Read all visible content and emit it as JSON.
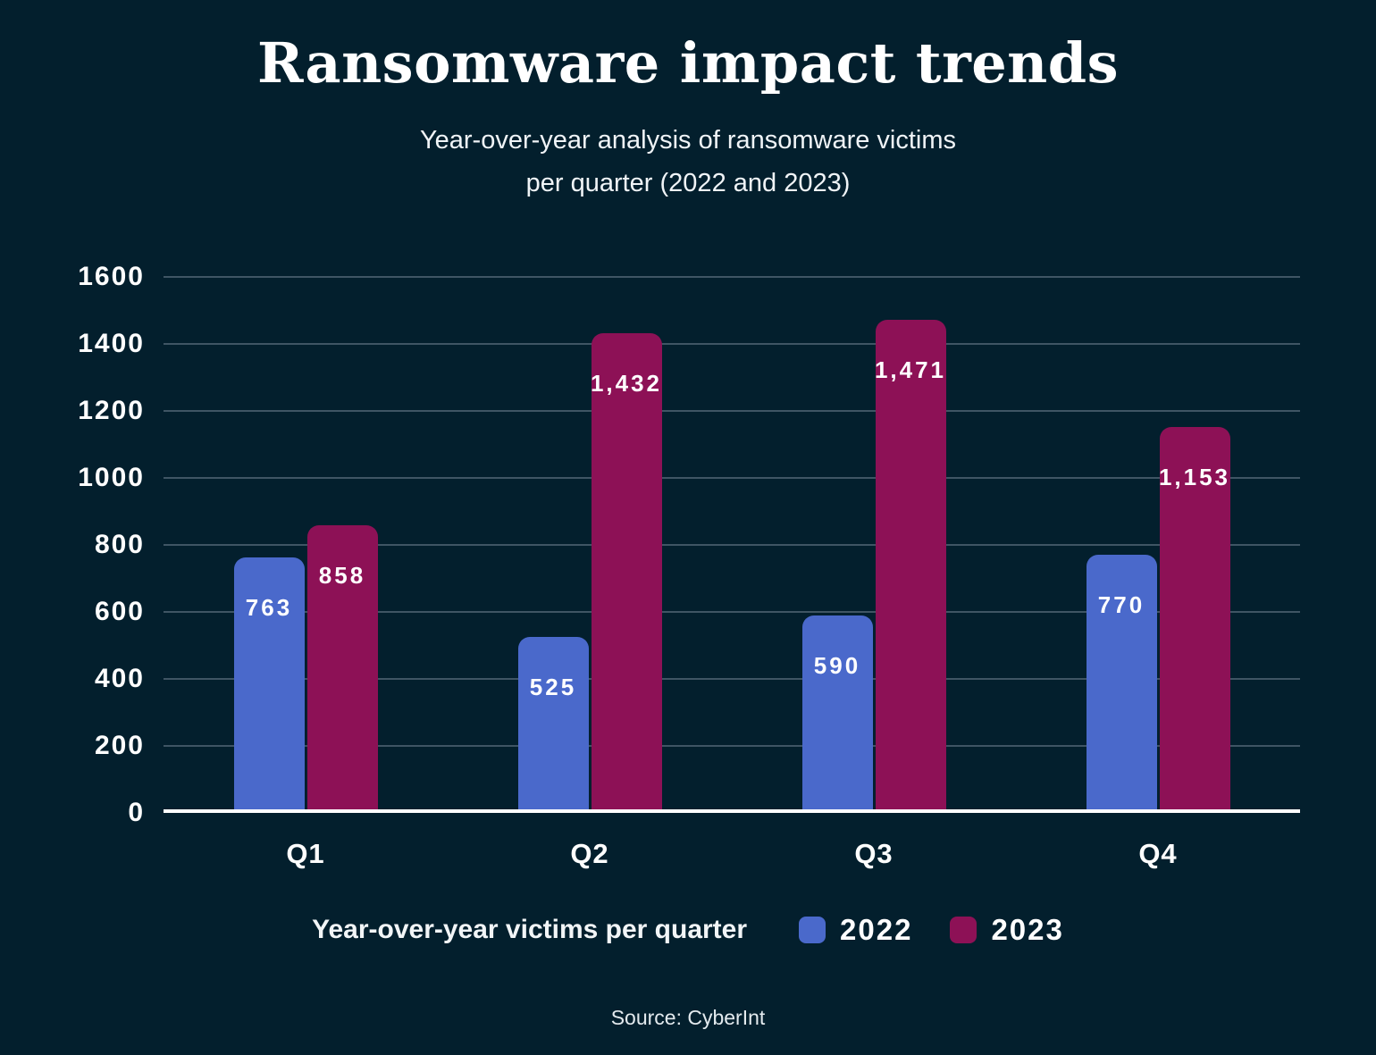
{
  "header": {
    "title": "Ransomware impact trends",
    "subtitle_line1": "Year-over-year analysis of ransomware victims",
    "subtitle_line2": "per quarter (2022 and 2023)"
  },
  "legend": {
    "label": "Year-over-year victims per quarter",
    "items": [
      {
        "label": "2022",
        "color": "#4A69CB"
      },
      {
        "label": "2023",
        "color": "#8D1156"
      }
    ]
  },
  "footer": {
    "source": "Source: CyberInt"
  },
  "colors": {
    "background": "#031f2d",
    "gridline": "#3f5564",
    "axis_line": "#ffffff",
    "series_2022": "#4A69CB",
    "series_2023": "#8D1156",
    "text": "#ffffff"
  },
  "chart_data": {
    "type": "bar",
    "title": "Ransomware impact trends",
    "subtitle": "Year-over-year analysis of ransomware victims per quarter (2022 and 2023)",
    "categories": [
      "Q1",
      "Q2",
      "Q3",
      "Q4"
    ],
    "series": [
      {
        "name": "2022",
        "color": "#4A69CB",
        "values": [
          763,
          525,
          590,
          770
        ]
      },
      {
        "name": "2023",
        "color": "#8D1156",
        "values": [
          858,
          1432,
          1471,
          1153
        ]
      }
    ],
    "value_labels": [
      [
        "763",
        "525",
        "590",
        "770"
      ],
      [
        "858",
        "1,432",
        "1,471",
        "1,153"
      ]
    ],
    "xlabel": "",
    "ylabel": "",
    "ylim": [
      0,
      1600
    ],
    "y_ticks": [
      0,
      200,
      400,
      600,
      800,
      1000,
      1200,
      1400,
      1600
    ],
    "grid": true,
    "legend_label": "Year-over-year victims per quarter",
    "legend_position": "bottom",
    "source": "Source: CyberInt"
  }
}
